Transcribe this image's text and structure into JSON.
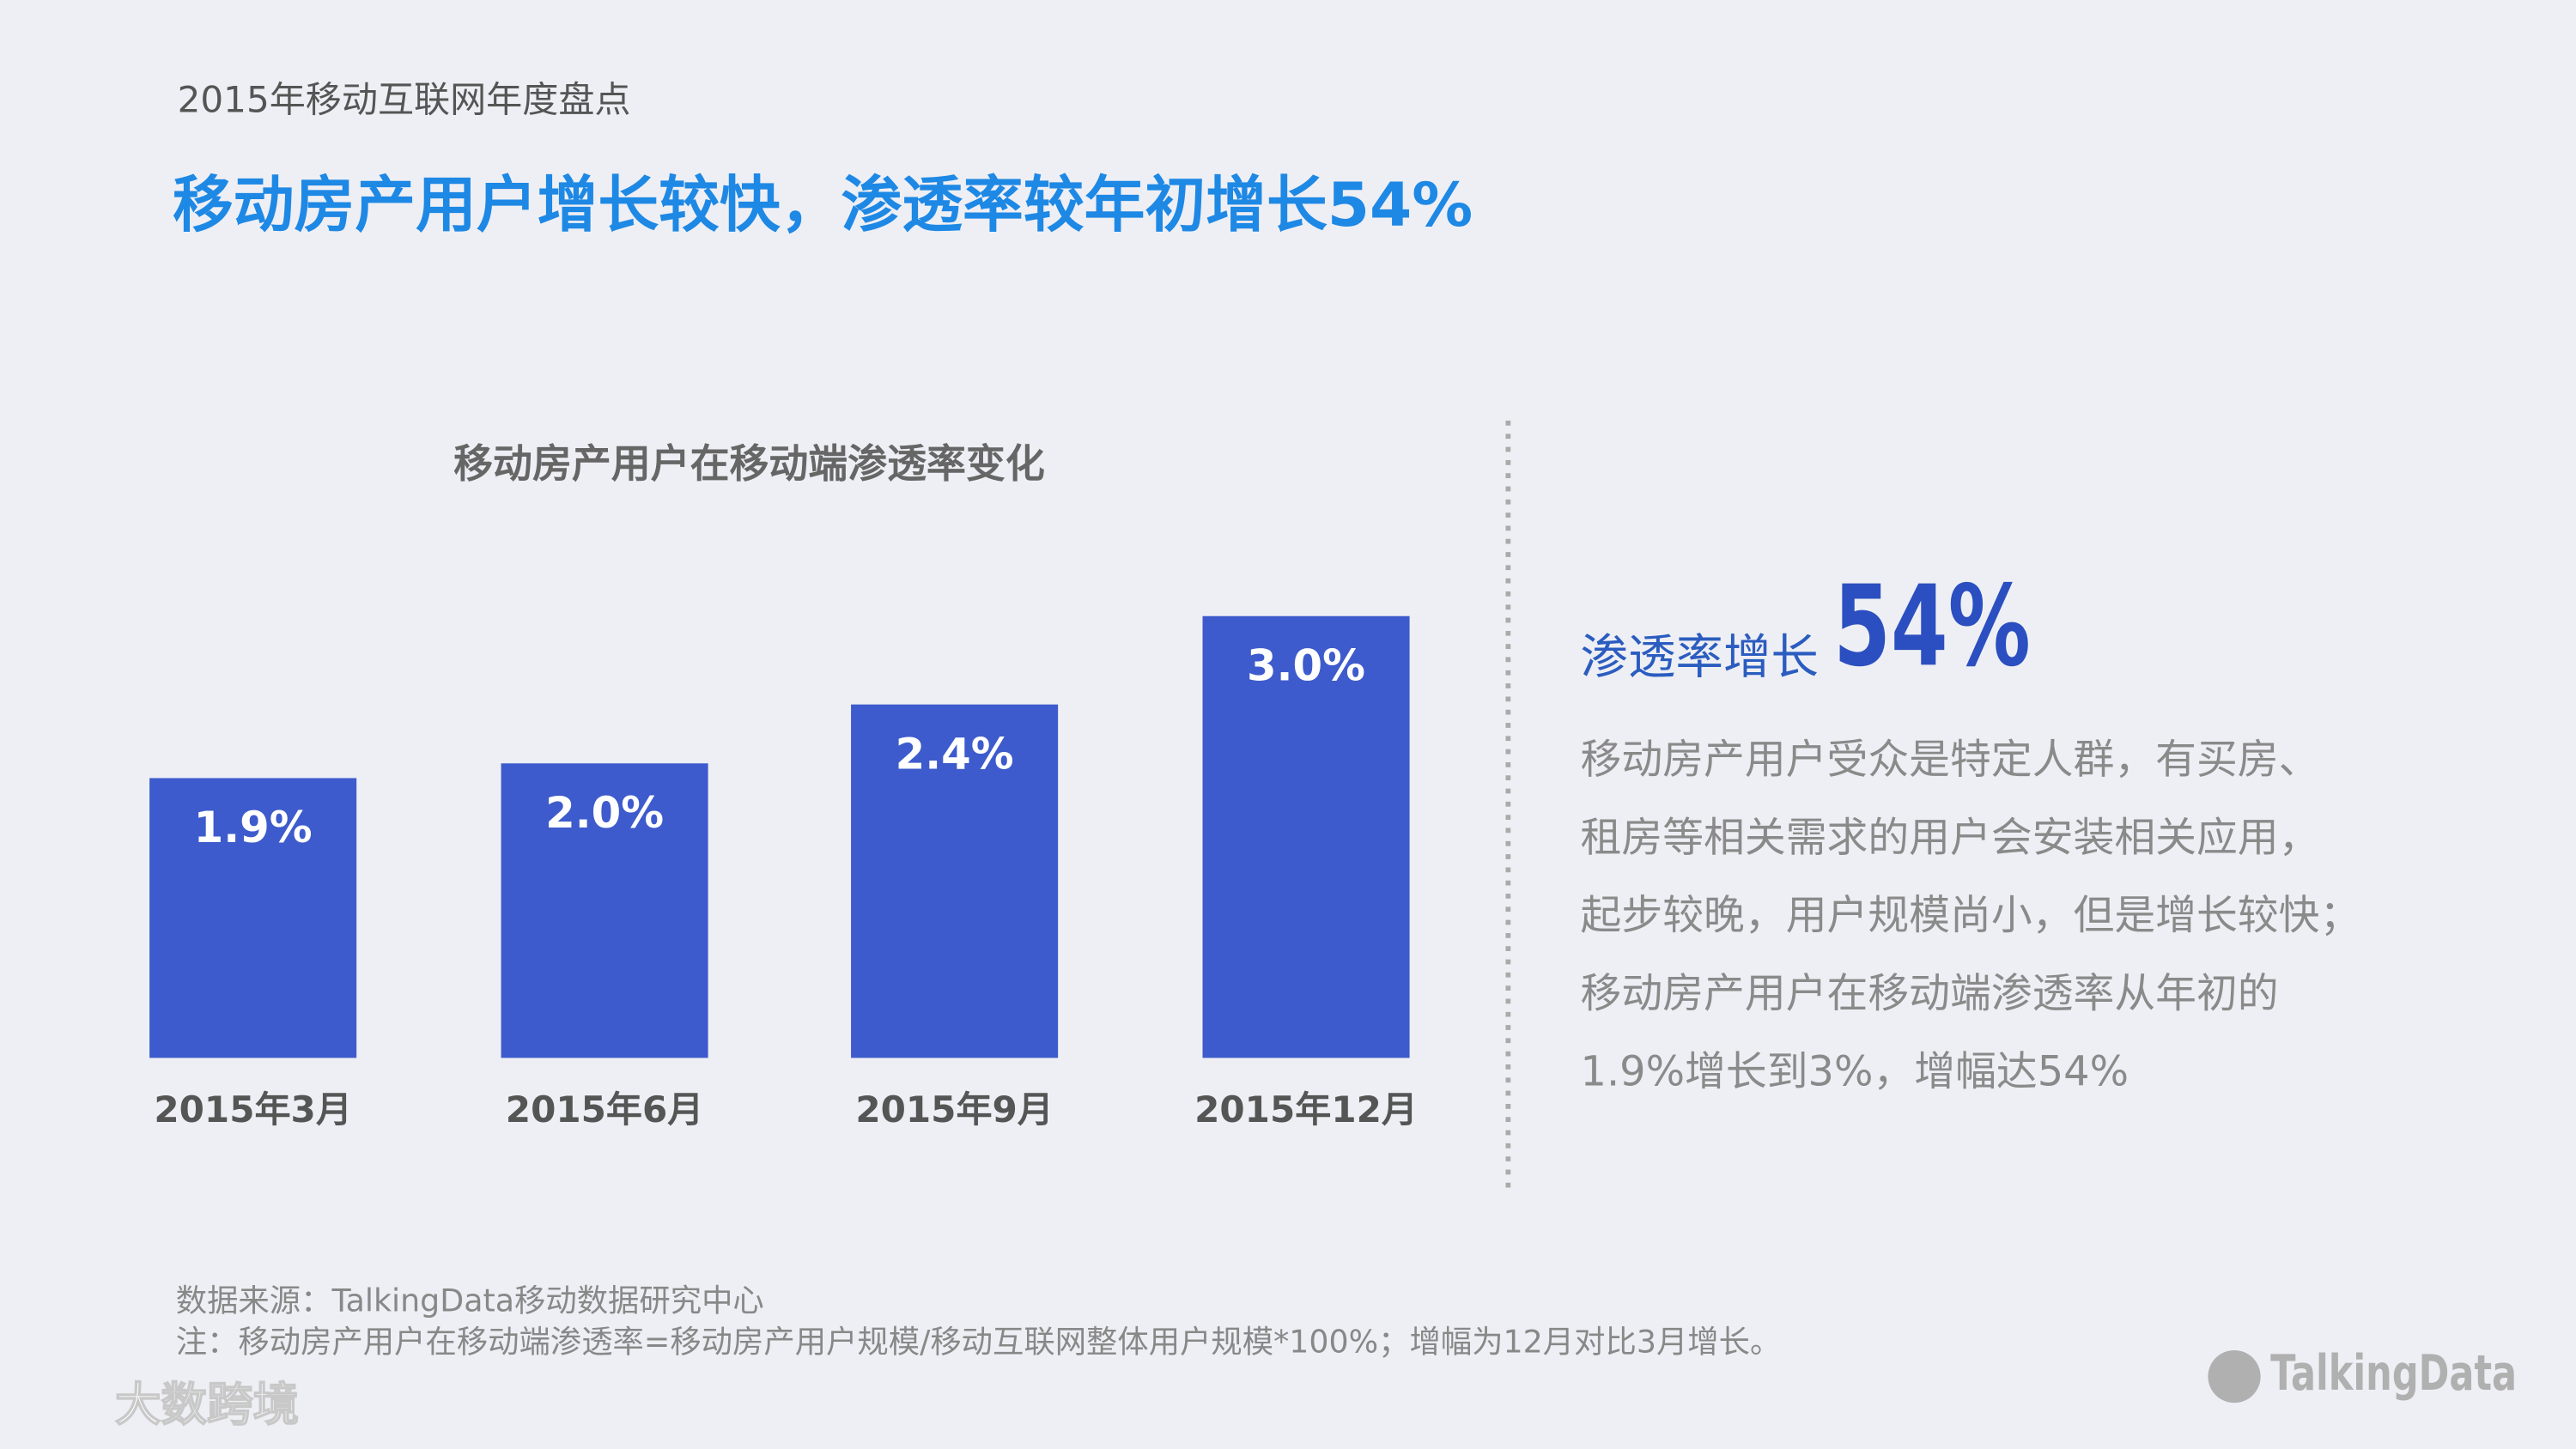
{
  "header": {
    "subtitle": "2015年移动互联网年度盘点",
    "title": "移动房产用户增长较快，渗透率较年初增长54%"
  },
  "chart_data": {
    "type": "bar",
    "title": "移动房产用户在移动端渗透率变化",
    "categories": [
      "2015年3月",
      "2015年6月",
      "2015年9月",
      "2015年12月"
    ],
    "values": [
      1.9,
      2.0,
      2.4,
      3.0
    ],
    "value_labels": [
      "1.9%",
      "2.0%",
      "2.4%",
      "3.0%"
    ],
    "color": "#3d5bcc"
  },
  "sidebar": {
    "lead": "渗透率增长",
    "highlight": "54%",
    "lines": [
      "移动房产用户受众是特定人群，有买房、",
      "租房等相关需求的用户会安装相关应用，",
      "起步较晚，用户规模尚小，但是增长较快；",
      "移动房产用户在移动端渗透率从年初的",
      "1.9%增长到3%，增幅达54%"
    ]
  },
  "footer": {
    "source": "数据来源：TalkingData移动数据研究中心",
    "note": "注：移动房产用户在移动端渗透率=移动房产用户规模/移动互联网整体用户规模*100%；增幅为12月对比3月增长。",
    "logo": "TalkingData",
    "watermark": "大数跨境"
  }
}
